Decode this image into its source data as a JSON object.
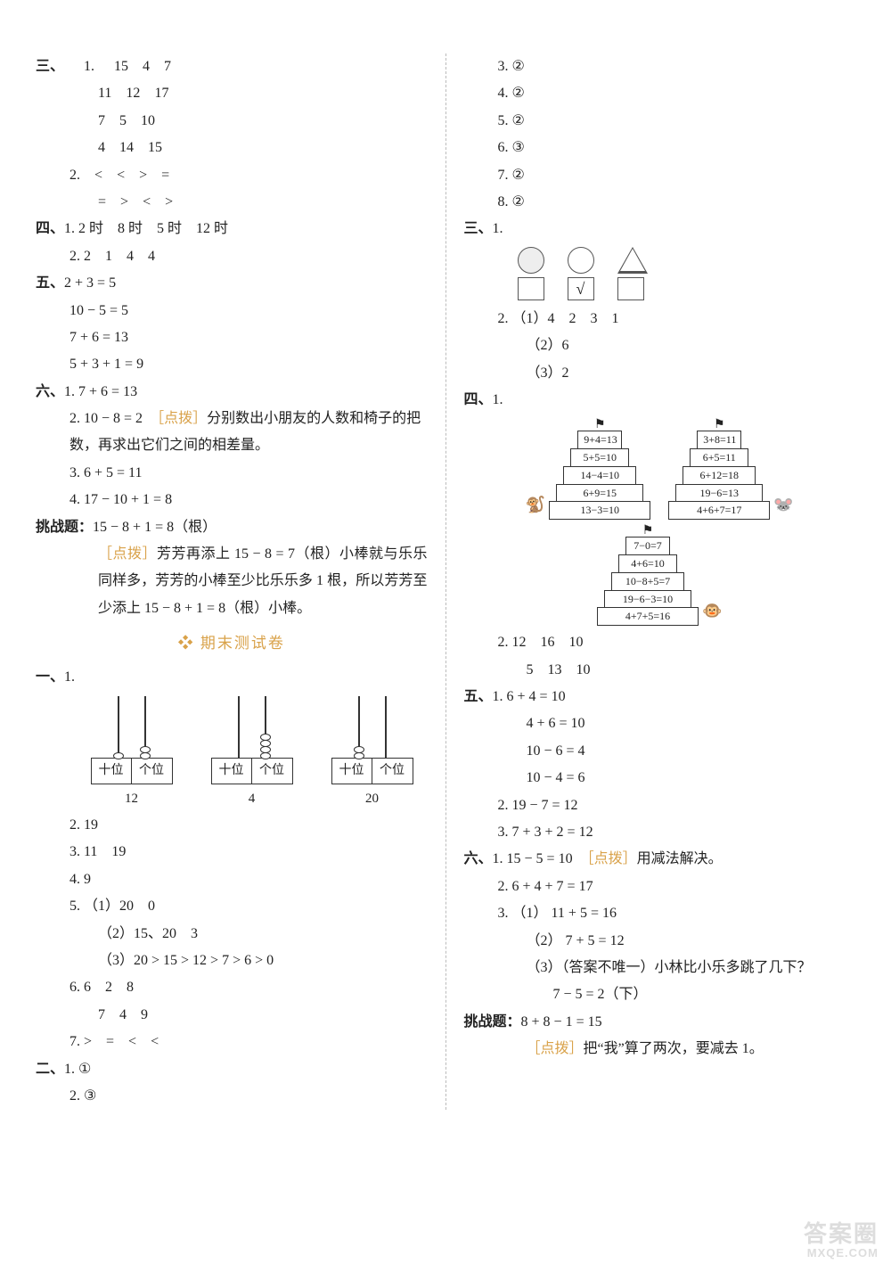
{
  "watermark": {
    "line1": "答案圈",
    "line2": "MXQE.COM"
  },
  "left": {
    "san": {
      "label": "三、",
      "rows": [
        {
          "n": "1.",
          "cells": [
            "15",
            "4",
            "7"
          ]
        },
        {
          "n": "",
          "cells": [
            "11",
            "12",
            "17"
          ]
        },
        {
          "n": "",
          "cells": [
            "7",
            "5",
            "10"
          ]
        },
        {
          "n": "",
          "cells": [
            "4",
            "14",
            "15"
          ]
        },
        {
          "n": "2.",
          "cells": [
            "<",
            "<",
            ">",
            "="
          ]
        },
        {
          "n": "",
          "cells": [
            "=",
            ">",
            "<",
            ">"
          ]
        }
      ]
    },
    "si": {
      "label": "四、",
      "l1": {
        "n": "1.",
        "text": "2 时　8 时　5 时　12 时"
      },
      "l2": {
        "n": "2.",
        "text": "2　1　4　4"
      }
    },
    "wu": {
      "label": "五、",
      "lines": [
        "2 + 3 = 5",
        "10 − 5 = 5",
        "7 + 6 = 13",
        "5 + 3 + 1 = 9"
      ]
    },
    "liu": {
      "label": "六、",
      "l1": {
        "n": "1.",
        "text": "7 + 6 = 13"
      },
      "l2": {
        "n": "2.",
        "text": "10 − 8 = 2",
        "hint_label": "［点拨］",
        "hint": "分别数出小朋友的人数和椅子的把数，再求出它们之间的相差量。"
      },
      "l3": {
        "n": "3.",
        "text": "6 + 5 = 11"
      },
      "l4": {
        "n": "4.",
        "text": "17 − 10 + 1 = 8"
      }
    },
    "tiaozhan": {
      "label": "挑战题：",
      "text": "15 − 8 + 1 = 8（根）",
      "hint_label": "［点拨］",
      "hint": "芳芳再添上 15 − 8 = 7（根）小棒就与乐乐同样多，芳芳的小棒至少比乐乐多 1 根，所以芳芳至少添上 15 − 8 + 1 = 8（根）小棒。"
    },
    "banner": "期末测试卷",
    "yi": {
      "label": "一、",
      "n1": "1.",
      "abacus": [
        {
          "tens": 1,
          "ones": 2,
          "tens_label": "十位",
          "ones_label": "个位",
          "num": "12"
        },
        {
          "tens": 0,
          "ones": 4,
          "tens_label": "十位",
          "ones_label": "个位",
          "num": "4"
        },
        {
          "tens": 2,
          "ones": 0,
          "tens_label": "十位",
          "ones_label": "个位",
          "num": "20"
        }
      ],
      "items": [
        {
          "n": "2.",
          "text": "19"
        },
        {
          "n": "3.",
          "text": "11　19"
        },
        {
          "n": "4.",
          "text": "9"
        },
        {
          "n": "5.",
          "sub": [
            {
              "k": "（1）",
              "v": "20　0"
            },
            {
              "k": "（2）",
              "v": "15、20　3"
            },
            {
              "k": "（3）",
              "v": "20 > 15 > 12 > 7 > 6 > 0"
            }
          ]
        },
        {
          "n": "6.",
          "text": "6　2　8"
        },
        {
          "n": "",
          "text": "7　4　9"
        },
        {
          "n": "7.",
          "text": ">　=　<　<"
        }
      ]
    },
    "er": {
      "label": "二、",
      "items": [
        {
          "n": "1.",
          "text": "①"
        },
        {
          "n": "2.",
          "text": "③"
        }
      ]
    }
  },
  "right": {
    "er_cont": [
      {
        "n": "3.",
        "text": "②"
      },
      {
        "n": "4.",
        "text": "②"
      },
      {
        "n": "5.",
        "text": "②"
      },
      {
        "n": "6.",
        "text": "③"
      },
      {
        "n": "7.",
        "text": "②"
      },
      {
        "n": "8.",
        "text": "②"
      }
    ],
    "san": {
      "label": "三、",
      "n1": "1.",
      "check": "√",
      "l2": {
        "n": "2.",
        "sub": [
          {
            "k": "（1）",
            "v": "4　2　3　1"
          },
          {
            "k": "（2）",
            "v": "6"
          },
          {
            "k": "（3）",
            "v": "2"
          }
        ]
      }
    },
    "si": {
      "label": "四、",
      "n1": "1.",
      "pyrA": [
        "9+4=13",
        "5+5=10",
        "14−4=10",
        "6+9=15",
        "13−3=10"
      ],
      "pyrB": [
        "3+8=11",
        "6+5=11",
        "6+12=18",
        "19−6=13",
        "4+6+7=17"
      ],
      "pyrC": [
        "7−0=7",
        "4+6=10",
        "10−8+5=7",
        "19−6−3=10",
        "4+7+5=16"
      ],
      "l2": {
        "n": "2.",
        "row1": "12　16　10",
        "row2": "5　13　10"
      }
    },
    "wu": {
      "label": "五、",
      "items": [
        {
          "n": "1.",
          "lines": [
            "6 + 4 = 10",
            "4 + 6 = 10",
            "10 − 6 = 4",
            "10 − 4 = 6"
          ]
        },
        {
          "n": "2.",
          "lines": [
            "19 − 7 = 12"
          ]
        },
        {
          "n": "3.",
          "lines": [
            "7 + 3 + 2 = 12"
          ]
        }
      ]
    },
    "liu": {
      "label": "六、",
      "l1": {
        "n": "1.",
        "text": "15 − 5 = 10",
        "hint_label": "［点拨］",
        "hint": "用减法解决。"
      },
      "l2": {
        "n": "2.",
        "text": "6 + 4 + 7 = 17"
      },
      "l3": {
        "n": "3.",
        "sub": [
          {
            "k": "（1）",
            "v": "11 + 5 = 16"
          },
          {
            "k": "（2）",
            "v": "7 + 5 = 12"
          },
          {
            "k": "（3）",
            "q": "（答案不唯一）小林比小乐多跳了几下？",
            "a": "7 − 5 = 2（下）"
          }
        ]
      }
    },
    "tiaozhan": {
      "label": "挑战题：",
      "text": "8 + 8 − 1 = 15",
      "hint_label": "［点拨］",
      "hint": "把“我”算了两次，要减去 1。"
    }
  }
}
